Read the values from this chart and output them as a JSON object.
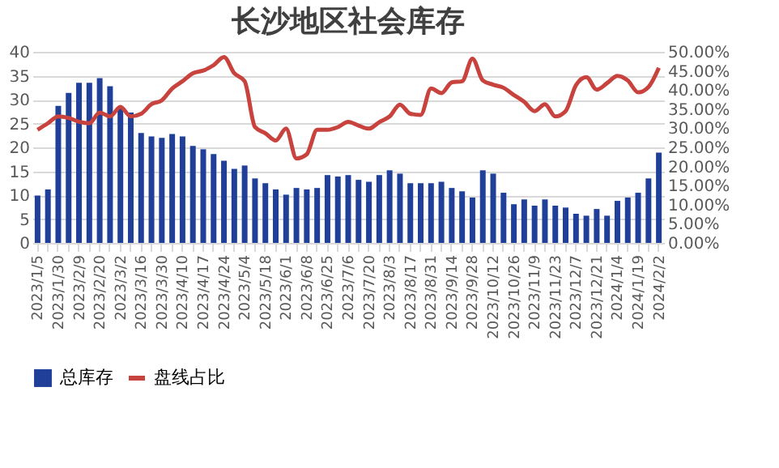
{
  "chart_data": {
    "type": "bar",
    "title": "长沙地区社会库存",
    "categories": [
      "2023/1/5",
      null,
      "2023/1/30",
      null,
      "2023/2/9",
      null,
      "2023/2/20",
      null,
      "2023/3/2",
      null,
      "2023/3/16",
      null,
      "2023/3/30",
      null,
      "2023/4/10",
      null,
      "2023/4/17",
      null,
      "2023/4/24",
      null,
      "2023/5/4",
      null,
      "2023/5/18",
      null,
      "2023/6/1",
      null,
      "2023/6/8",
      null,
      "2023/6/25",
      null,
      "2023/7/6",
      null,
      "2023/7/20",
      null,
      "2023/8/3",
      null,
      "2023/8/17",
      null,
      "2023/8/31",
      null,
      "2023/9/14",
      null,
      "2023/9/28",
      null,
      "2023/10/12",
      null,
      "2023/10/26",
      null,
      "2023/11/9",
      null,
      "2023/11/23",
      null,
      "2023/12/7",
      null,
      "2023/12/21",
      null,
      "2024/1/4",
      null,
      "2024/1/19",
      null,
      "2024/2/2"
    ],
    "series": [
      {
        "name": "总库存",
        "color": "#1f3f99",
        "values": [
          9.9,
          11.2,
          28.7,
          31.4,
          33.5,
          33.5,
          34.5,
          32.8,
          28.2,
          27.3,
          23.0,
          22.3,
          22.0,
          22.8,
          22.3,
          20.3,
          19.6,
          18.6,
          17.2,
          15.5,
          16.2,
          13.5,
          12.5,
          11.2,
          10.1,
          11.5,
          11.2,
          11.5,
          14.2,
          13.9,
          14.2,
          13.2,
          12.8,
          14.2,
          15.2,
          14.5,
          12.5,
          12.5,
          12.5,
          12.8,
          11.5,
          10.8,
          9.5,
          15.2,
          14.5,
          10.5,
          8.1,
          9.1,
          7.8,
          9.1,
          7.8,
          7.4,
          6.1,
          5.7,
          7.1,
          5.7,
          8.8,
          9.5,
          10.5,
          13.5,
          18.9
        ]
      },
      {
        "name": "盘线占比",
        "type": "line",
        "axis": "y2",
        "color": "#c8423e",
        "values": [
          29.6,
          31.3,
          33.1,
          32.7,
          31.7,
          31.3,
          34.1,
          33.1,
          35.6,
          33.1,
          33.8,
          36.3,
          37.3,
          40.4,
          42.3,
          44.4,
          45.1,
          46.5,
          48.6,
          44.4,
          42.3,
          30.3,
          28.7,
          26.8,
          29.9,
          22.1,
          23.2,
          29.6,
          29.6,
          30.3,
          31.7,
          30.7,
          29.9,
          31.6,
          33.1,
          36.2,
          33.8,
          33.5,
          40.4,
          39.2,
          42.0,
          42.3,
          48.2,
          42.5,
          41.4,
          40.6,
          38.7,
          36.9,
          34.5,
          36.3,
          33.1,
          34.5,
          41.3,
          43.4,
          40.1,
          41.8,
          43.7,
          42.5,
          39.4,
          40.8,
          45.8
        ]
      }
    ],
    "ylim": [
      0,
      40
    ],
    "yticks": [
      0,
      5,
      10,
      15,
      20,
      25,
      30,
      35,
      40
    ],
    "y2lim": [
      0,
      50
    ],
    "y2ticks": [
      {
        "value": 0,
        "label": "0.00%"
      },
      {
        "value": 5,
        "label": "5.00%"
      },
      {
        "value": 10,
        "label": "10.00%"
      },
      {
        "value": 15,
        "label": "15.00%"
      },
      {
        "value": 20,
        "label": "20.00%"
      },
      {
        "value": 25,
        "label": "25.00%"
      },
      {
        "value": 30,
        "label": "30.00%"
      },
      {
        "value": 35,
        "label": "35.00%"
      },
      {
        "value": 40,
        "label": "40.00%"
      },
      {
        "value": 45,
        "label": "45.00%"
      },
      {
        "value": 50,
        "label": "50.00%"
      }
    ],
    "grid": "y",
    "legend": "bottom"
  }
}
